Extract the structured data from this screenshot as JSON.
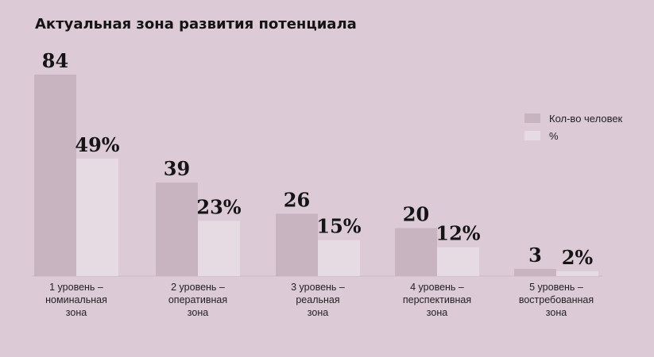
{
  "chart_data": {
    "type": "bar",
    "title": "Актуальная зона развития потенциала",
    "categories": [
      [
        "1 уровень –",
        "номинальная",
        "зона"
      ],
      [
        "2 уровень –",
        "оперативная",
        "зона"
      ],
      [
        "3 уровень –",
        "реальная",
        "зона"
      ],
      [
        "4 уровень –",
        "перспективная",
        "зона"
      ],
      [
        "5 уровень –",
        "востребованная",
        "зона"
      ]
    ],
    "series": [
      {
        "name": "Кол-во человек",
        "values": [
          84,
          39,
          26,
          20,
          3
        ],
        "labels": [
          "84",
          "39",
          "26",
          "20",
          "3"
        ],
        "color": "#c8b4c0"
      },
      {
        "name": "%",
        "values": [
          49,
          23,
          15,
          12,
          2
        ],
        "labels": [
          "49%",
          "23%",
          "15%",
          "12%",
          "2%"
        ],
        "color": "#e6dbe2"
      }
    ],
    "ylim": [
      0,
      84
    ],
    "grid": false,
    "legend_position": "right"
  }
}
